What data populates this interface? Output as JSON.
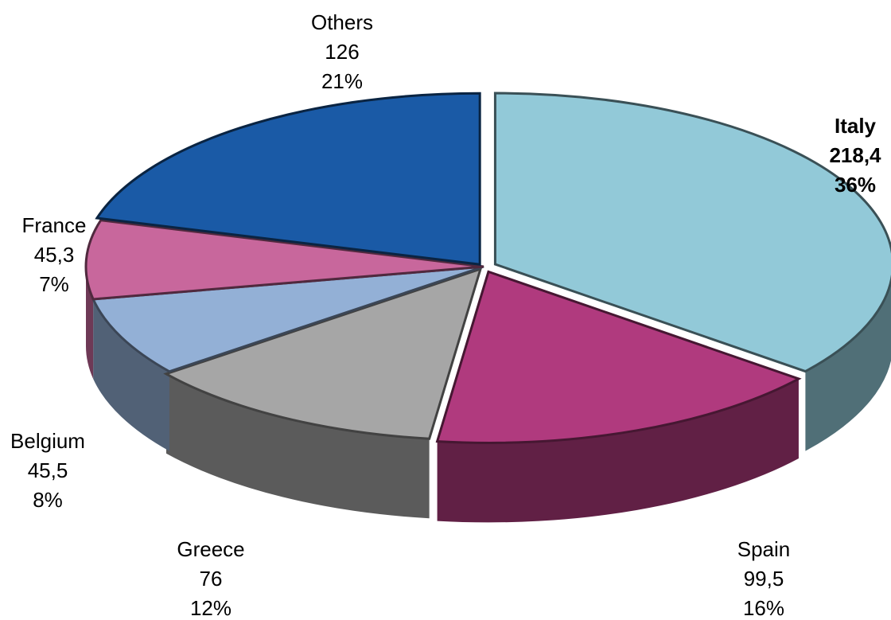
{
  "chart_data": {
    "type": "pie3d",
    "categories": [
      "Italy",
      "Spain",
      "Greece",
      "Belgium",
      "France",
      "Others"
    ],
    "values": [
      218.4,
      99.5,
      76,
      45.5,
      45.3,
      126
    ],
    "value_labels": [
      "218,4",
      "99,5",
      "76",
      "45,5",
      "45,3",
      "126"
    ],
    "percent_labels": [
      "36%",
      "16%",
      "12%",
      "8%",
      "7%",
      "21%"
    ],
    "colors": [
      "#92c9d8",
      "#b03a7e",
      "#a6a6a6",
      "#93b0d6",
      "#c8679c",
      "#1a5aa6"
    ]
  }
}
